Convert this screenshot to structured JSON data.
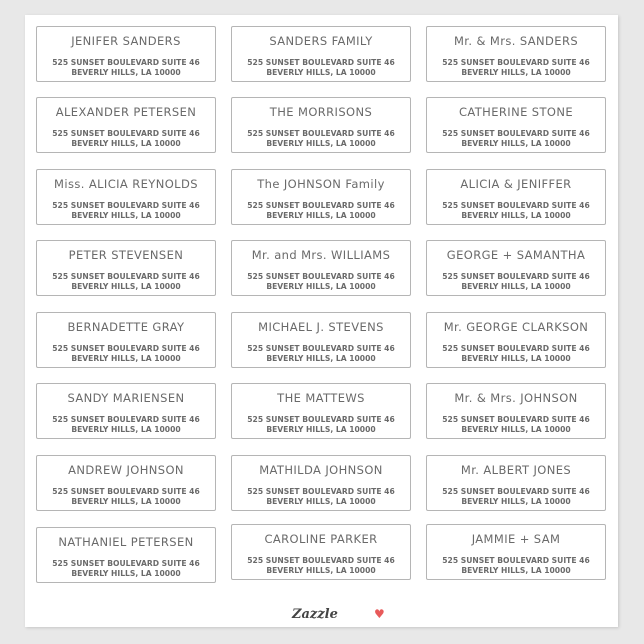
{
  "address_line1": "525 SUNSET BOULEVARD SUITE 46",
  "address_line2": "BEVERLY HILLS, LA 10000",
  "labels": [
    [
      "JENIFER SANDERS",
      "SANDERS FAMILY",
      "Mr. & Mrs. SANDERS"
    ],
    [
      "ALEXANDER PETERSEN",
      "THE MORRISONS",
      "CATHERINE STONE"
    ],
    [
      "Miss. ALICIA REYNOLDS",
      "The JOHNSON Family",
      "ALICIA & JENIFFER"
    ],
    [
      "PETER STEVENSEN",
      "Mr. and Mrs. WILLIAMS",
      "GEORGE + SAMANTHA"
    ],
    [
      "BERNADETTE GRAY",
      "MICHAEL J. STEVENS",
      "Mr. GEORGE CLARKSON"
    ],
    [
      "SANDY MARIENSEN",
      "THE MATTEWS",
      "Mr. & Mrs. JOHNSON"
    ],
    [
      "ANDREW JOHNSON",
      "MATHILDA JOHNSON",
      "Mr. ALBERT JONES"
    ],
    [
      "NATHANIEL PETERSEN",
      "CAROLINE PARKER",
      "JAMMIE + SAM"
    ]
  ],
  "footer": {
    "brand": "Zazzle",
    "heart_icon": "heart-icon",
    "heart_color": "#e85a5a"
  }
}
